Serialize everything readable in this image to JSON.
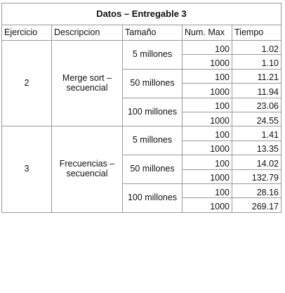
{
  "table": {
    "title": "Datos – Entregable  3",
    "headers": {
      "ejercicio": "Ejercicio",
      "descripcion": "Descripcion",
      "tamano": "Tamaño",
      "num_max": "Num. Max",
      "tiempo": "Tiempo"
    },
    "groups": [
      {
        "ejercicio": "2",
        "descripcion": "Merge sort – secuencial",
        "sizes": [
          {
            "label": "5 millones",
            "rows": [
              {
                "num_max": "100",
                "tiempo": "1.02"
              },
              {
                "num_max": "1000",
                "tiempo": "1.10"
              }
            ]
          },
          {
            "label": "50 millones",
            "rows": [
              {
                "num_max": "100",
                "tiempo": "11.21"
              },
              {
                "num_max": "1000",
                "tiempo": "11.94"
              }
            ]
          },
          {
            "label": "100 millones",
            "rows": [
              {
                "num_max": "100",
                "tiempo": "23.06"
              },
              {
                "num_max": "1000",
                "tiempo": "24.55"
              }
            ]
          }
        ]
      },
      {
        "ejercicio": "3",
        "descripcion": "Frecuencias – secuencial",
        "sizes": [
          {
            "label": "5 millones",
            "rows": [
              {
                "num_max": "100",
                "tiempo": "1.41"
              },
              {
                "num_max": "1000",
                "tiempo": "13.35"
              }
            ]
          },
          {
            "label": "50 millones",
            "rows": [
              {
                "num_max": "100",
                "tiempo": "14.02"
              },
              {
                "num_max": "1000",
                "tiempo": "132.79"
              }
            ]
          },
          {
            "label": "100 millones",
            "rows": [
              {
                "num_max": "100",
                "tiempo": "28.16"
              },
              {
                "num_max": "1000",
                "tiempo": "269.17"
              }
            ]
          }
        ]
      }
    ]
  }
}
